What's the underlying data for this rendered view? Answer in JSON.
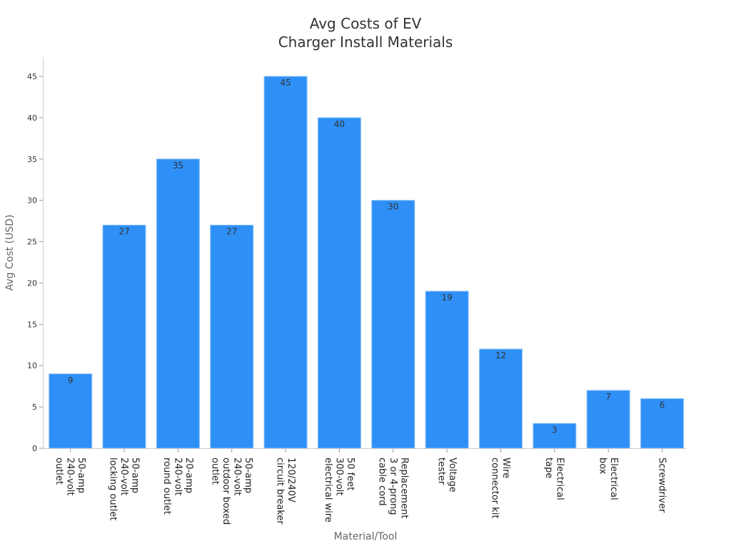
{
  "chart_data": {
    "type": "bar",
    "title": [
      "Avg Costs of EV",
      "Charger Install Materials"
    ],
    "xlabel": "Material/Tool",
    "ylabel": "Avg Cost (USD)",
    "ylim": [
      0,
      47.3
    ],
    "yticks": [
      0,
      5,
      10,
      15,
      20,
      25,
      30,
      35,
      40,
      45
    ],
    "grid": false,
    "bar_color": "#2e90f7",
    "categories": [
      [
        "50-amp",
        "240-volt",
        "outlet"
      ],
      [
        "50-amp",
        "240-volt",
        "locking outlet"
      ],
      [
        "20-amp",
        "240-volt",
        "round outlet"
      ],
      [
        "50-amp",
        "240-volt",
        "outdoor boxed",
        "outlet"
      ],
      [
        "120/240V",
        "circuit breaker"
      ],
      [
        "50 feet",
        "300-volt",
        "electrical wire"
      ],
      [
        "Replacement",
        "3 or 4-prong",
        "cable cord"
      ],
      [
        "Voltage",
        "tester"
      ],
      [
        "Wire",
        "connector kit"
      ],
      [
        "Electrical",
        "tape"
      ],
      [
        "Electrical",
        "box"
      ],
      [
        "Screwdriver"
      ]
    ],
    "values": [
      9,
      27,
      35,
      27,
      45,
      40,
      30,
      19,
      12,
      3,
      7,
      6
    ]
  }
}
